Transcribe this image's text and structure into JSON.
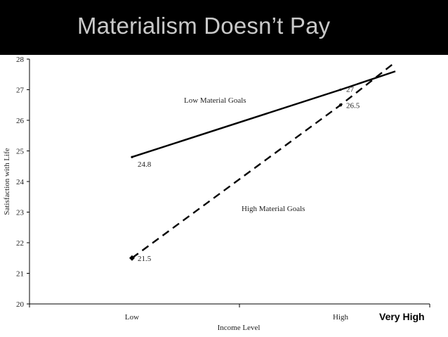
{
  "slide": {
    "title": "Materialism Doesn’t Pay"
  },
  "chart_data": {
    "type": "line",
    "title": "",
    "xlabel": "Income Level",
    "ylabel": "Satisfaction with Life",
    "categories": [
      "Low",
      "High"
    ],
    "ylim": [
      20,
      28
    ],
    "yticks": [
      20,
      21,
      22,
      23,
      24,
      25,
      26,
      27,
      28
    ],
    "grid": false,
    "series": [
      {
        "name": "Low Material Goals",
        "line_style": "solid",
        "values": [
          24.8,
          27
        ],
        "value_labels": [
          "24.8",
          "27"
        ],
        "extension_value": 27.6
      },
      {
        "name": "High Material Goals",
        "line_style": "dashed",
        "values": [
          21.5,
          26.5
        ],
        "value_labels": [
          "21.5",
          "26.5"
        ],
        "extension_value": 27.9
      }
    ],
    "annotation": "Very High"
  }
}
